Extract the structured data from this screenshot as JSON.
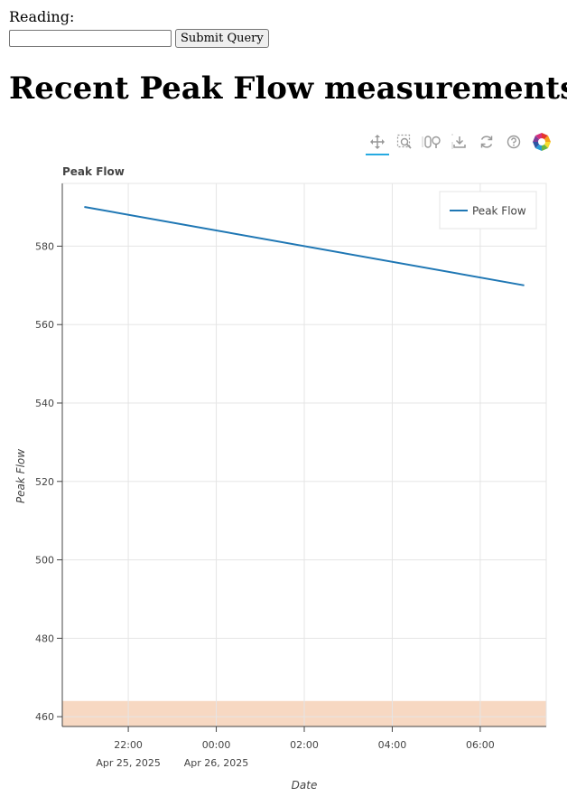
{
  "form": {
    "label": "Reading:",
    "input_value": "",
    "input_placeholder": "",
    "submit_label": "Submit Query"
  },
  "heading": "Recent Peak Flow measurements:",
  "toolbar": {
    "tools": [
      {
        "name": "pan-tool-icon",
        "active": true
      },
      {
        "name": "box-zoom-tool-icon",
        "active": false
      },
      {
        "name": "wheel-zoom-tool-icon",
        "active": false
      },
      {
        "name": "save-tool-icon",
        "active": false
      },
      {
        "name": "reset-tool-icon",
        "active": false
      },
      {
        "name": "help-tool-icon",
        "active": false
      },
      {
        "name": "bokeh-logo-icon",
        "active": false
      }
    ]
  },
  "chart_data": {
    "type": "line",
    "title": "Peak Flow",
    "xlabel": "Date",
    "ylabel": "Peak Flow",
    "x_type": "datetime",
    "x": [
      "2025-04-25 21:00",
      "2025-04-26 07:00"
    ],
    "series": [
      {
        "name": "Peak Flow",
        "color": "#1f77b4",
        "x": [
          "2025-04-25 21:00",
          "2025-04-26 07:00"
        ],
        "y": [
          590,
          570
        ]
      }
    ],
    "xlim": [
      "2025-04-25 20:30",
      "2025-04-26 07:30"
    ],
    "ylim": [
      457.5,
      596
    ],
    "x_ticks": [
      {
        "value": "2025-04-25 22:00",
        "label": "22:00",
        "sublabel": "Apr 25, 2025"
      },
      {
        "value": "2025-04-26 00:00",
        "label": "00:00",
        "sublabel": "Apr 26, 2025"
      },
      {
        "value": "2025-04-26 02:00",
        "label": "02:00",
        "sublabel": ""
      },
      {
        "value": "2025-04-26 04:00",
        "label": "04:00",
        "sublabel": ""
      },
      {
        "value": "2025-04-26 06:00",
        "label": "06:00",
        "sublabel": ""
      }
    ],
    "y_ticks": [
      460,
      480,
      500,
      520,
      540,
      560,
      580
    ],
    "band": {
      "from": 457.5,
      "to": 464,
      "color": "#f4c8a8"
    },
    "grid": true,
    "legend": {
      "position": "top-right",
      "entries": [
        "Peak Flow"
      ]
    }
  }
}
